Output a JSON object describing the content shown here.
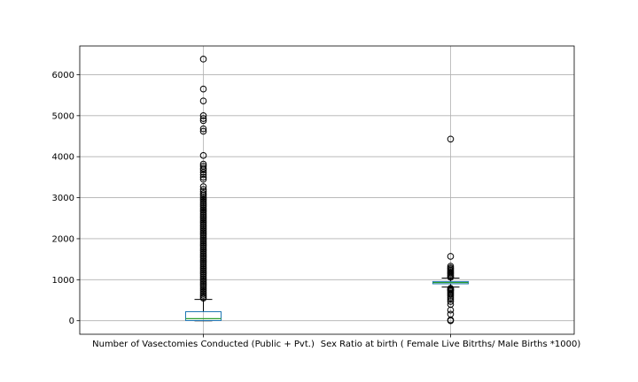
{
  "chart_data": {
    "type": "box",
    "title": "",
    "xlabel": "",
    "ylabel": "",
    "ylim": [
      -330,
      6700
    ],
    "yticks": [
      0,
      1000,
      2000,
      3000,
      4000,
      5000,
      6000
    ],
    "grid": true,
    "categories": [
      "Number of Vasectomies Conducted (Public + Pvt.)",
      "Sex Ratio at birth ( Female Live Bitrths/ Male Births *1000)"
    ],
    "boxes": [
      {
        "whisker_low": 0,
        "q1": 5,
        "median": 50,
        "q3": 220,
        "whisker_high": 520,
        "fliers": [
          6380,
          5650,
          5360,
          5000,
          4930,
          4880,
          4680,
          4620,
          4030,
          3820,
          3770,
          3720,
          3680,
          3620,
          3560,
          3500,
          3450,
          3270,
          3200,
          3150,
          3100,
          3060,
          3020,
          2980,
          2940,
          2900,
          2860,
          2820,
          2780,
          2740,
          2700,
          2660,
          2620,
          2580,
          2540,
          2500,
          2460,
          2420,
          2380,
          2340,
          2300,
          2260,
          2220,
          2180,
          2140,
          2100,
          2060,
          2020,
          1980,
          1940,
          1900,
          1860,
          1820,
          1780,
          1740,
          1700,
          1660,
          1620,
          1580,
          1540,
          1500,
          1460,
          1420,
          1380,
          1340,
          1300,
          1260,
          1220,
          1180,
          1140,
          1100,
          1060,
          1020,
          980,
          940,
          900,
          860,
          820,
          780,
          740,
          700,
          660,
          620,
          580,
          550
        ]
      },
      {
        "whisker_low": 820,
        "q1": 900,
        "median": 930,
        "q3": 955,
        "whisker_high": 1040,
        "fliers": [
          4430,
          1570,
          1330,
          1290,
          1260,
          1230,
          1200,
          1170,
          1140,
          1110,
          1080,
          1060,
          790,
          770,
          750,
          730,
          700,
          670,
          640,
          600,
          560,
          520,
          470,
          400,
          260,
          160,
          20,
          0
        ]
      }
    ],
    "colors": {
      "box": "#1f77b4",
      "median": "#2ca02c",
      "whisker": "#000000",
      "flier": "#000000",
      "grid": "#b0b0b0",
      "axes": "#000000"
    }
  }
}
